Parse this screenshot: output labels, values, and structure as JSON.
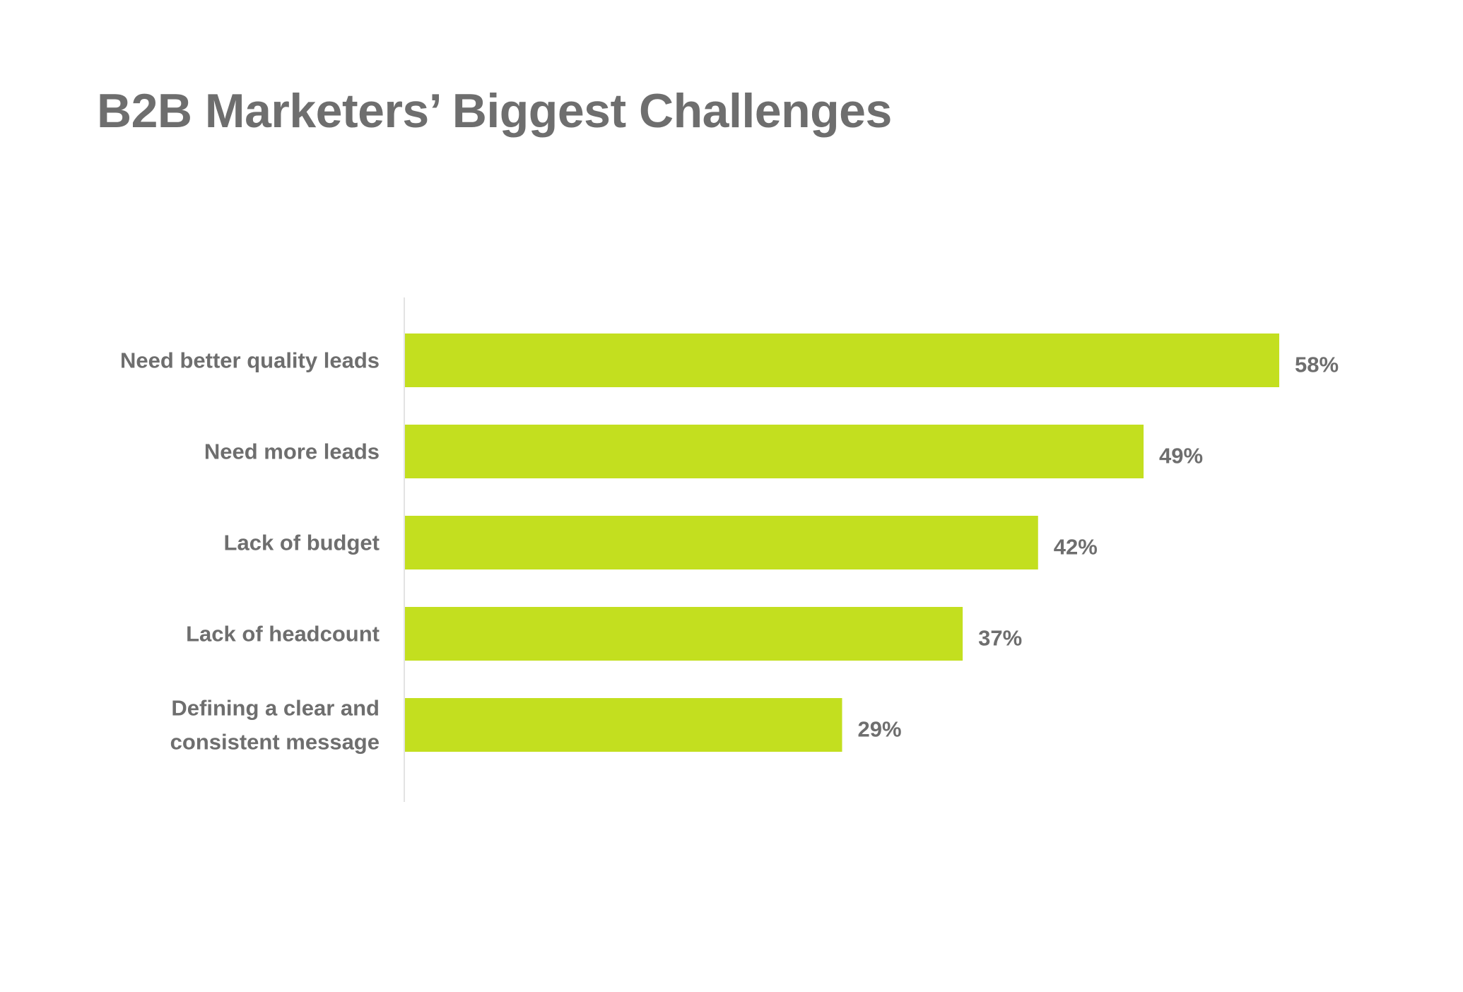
{
  "colors": {
    "bar": "#c3df1f",
    "text": "#6e6e6e",
    "axis": "#e3e3e3",
    "background": "#ffffff"
  },
  "chart_data": {
    "type": "bar",
    "orientation": "horizontal",
    "title": "B2B Marketers’ Biggest Challenges",
    "categories": [
      [
        "Need better quality leads"
      ],
      [
        "Need more leads"
      ],
      [
        "Lack of budget"
      ],
      [
        "Lack of headcount"
      ],
      [
        "Defining a clear and",
        "consistent message"
      ]
    ],
    "values": [
      58,
      49,
      42,
      37,
      29
    ],
    "value_labels": [
      "58%",
      "49%",
      "42%",
      "37%",
      "29%"
    ],
    "xlim": [
      0,
      58
    ],
    "grid": false,
    "legend": "none"
  }
}
